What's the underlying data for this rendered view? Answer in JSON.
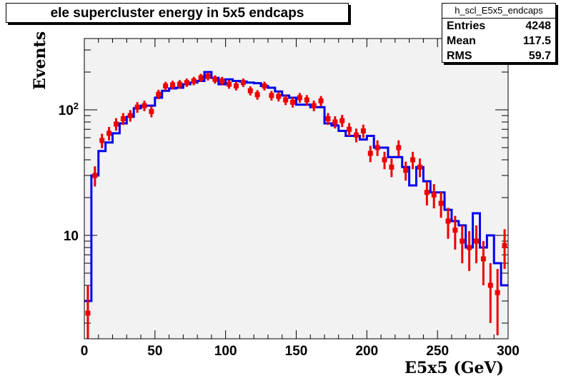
{
  "title": "ele supercluster energy in 5x5 endcaps",
  "stats": {
    "name": "h_scl_E5x5_endcaps",
    "rows": [
      {
        "label": "Entries",
        "value": "4248"
      },
      {
        "label": "Mean",
        "value": "117.5"
      },
      {
        "label": "RMS",
        "value": "59.7"
      }
    ]
  },
  "colors": {
    "frame_fill": "#f2f2f2",
    "histogram_line": "#0000ee",
    "data_markers": "#ee0000"
  },
  "chart_data": {
    "type": "line",
    "xlabel": "E5x5 (GeV)",
    "ylabel": "Events",
    "xlim": [
      0,
      300
    ],
    "ylim": [
      1.5,
      370
    ],
    "log_y": true,
    "grid": false,
    "x_ticks": [
      0,
      50,
      100,
      150,
      200,
      250,
      300
    ],
    "x_tick_labels": [
      "0",
      "50",
      "100",
      "150",
      "200",
      "250",
      "300"
    ],
    "y_ticks": [
      10,
      100
    ],
    "y_tick_labels": [
      "10",
      "10^2"
    ],
    "bin_width": 5,
    "series": [
      {
        "style": "step",
        "color": "#0000ee",
        "bin_edges": [
          0,
          5,
          10,
          15,
          20,
          25,
          30,
          35,
          40,
          45,
          50,
          55,
          60,
          65,
          70,
          75,
          80,
          85,
          90,
          95,
          100,
          105,
          110,
          115,
          120,
          125,
          130,
          135,
          140,
          145,
          150,
          155,
          160,
          165,
          170,
          175,
          180,
          185,
          190,
          195,
          200,
          205,
          210,
          215,
          220,
          225,
          230,
          235,
          240,
          245,
          250,
          255,
          260,
          265,
          270,
          275,
          280,
          285,
          290,
          295,
          300
        ],
        "values": [
          3,
          30,
          47,
          55,
          65,
          78,
          88,
          103,
          108,
          108,
          125,
          142,
          148,
          150,
          160,
          165,
          170,
          200,
          180,
          160,
          175,
          170,
          168,
          165,
          163,
          155,
          150,
          140,
          130,
          125,
          110,
          110,
          105,
          105,
          78,
          75,
          68,
          62,
          62,
          58,
          62,
          50,
          50,
          42,
          42,
          35,
          25,
          35,
          27,
          22,
          22,
          16,
          13,
          12,
          8,
          15,
          8,
          10,
          6,
          4
        ]
      },
      {
        "style": "points",
        "color": "#ee0000",
        "x": [
          2.5,
          7.5,
          12.5,
          17.5,
          22.5,
          27.5,
          32.5,
          37.5,
          42.5,
          47.5,
          52.5,
          57.5,
          62.5,
          67.5,
          72.5,
          77.5,
          82.5,
          87.5,
          92.5,
          97.5,
          102.5,
          107.5,
          112.5,
          117.5,
          122.5,
          127.5,
          132.5,
          137.5,
          142.5,
          147.5,
          152.5,
          157.5,
          162.5,
          167.5,
          172.5,
          177.5,
          182.5,
          187.5,
          192.5,
          197.5,
          202.5,
          207.5,
          212.5,
          217.5,
          222.5,
          227.5,
          232.5,
          237.5,
          242.5,
          247.5,
          252.5,
          257.5,
          262.5,
          267.5,
          272.5,
          277.5,
          282.5,
          287.5,
          292.5,
          297.5
        ],
        "y": [
          2.4,
          30,
          57,
          65,
          77,
          85,
          90,
          105,
          108,
          97,
          133,
          155,
          158,
          160,
          165,
          170,
          180,
          185,
          175,
          170,
          160,
          155,
          165,
          142,
          132,
          155,
          130,
          128,
          120,
          115,
          125,
          120,
          108,
          118,
          85,
          80,
          82,
          70,
          63,
          68,
          45,
          50,
          40,
          35,
          50,
          33,
          40,
          35,
          22,
          21,
          18,
          13,
          11,
          9,
          8,
          9,
          6.5,
          4,
          3.5,
          8.3
        ],
        "err": [
          1.6,
          5.5,
          7.5,
          8,
          8.8,
          9.2,
          9.5,
          10.2,
          10.4,
          9.8,
          11.5,
          12.4,
          12.6,
          12.6,
          12.8,
          13,
          13.4,
          13.6,
          13.2,
          13,
          12.6,
          12.4,
          12.8,
          11.9,
          11.5,
          12.4,
          11.4,
          11.3,
          10.9,
          10.7,
          11.2,
          11,
          10.4,
          10.9,
          9.2,
          8.9,
          9.1,
          8.4,
          7.9,
          8.2,
          6.7,
          7.1,
          6.3,
          5.9,
          7.1,
          5.7,
          6.3,
          5.9,
          4.7,
          4.6,
          4.2,
          3.6,
          3.3,
          3,
          2.8,
          3,
          2.5,
          2,
          1.9,
          2.9
        ]
      }
    ]
  }
}
